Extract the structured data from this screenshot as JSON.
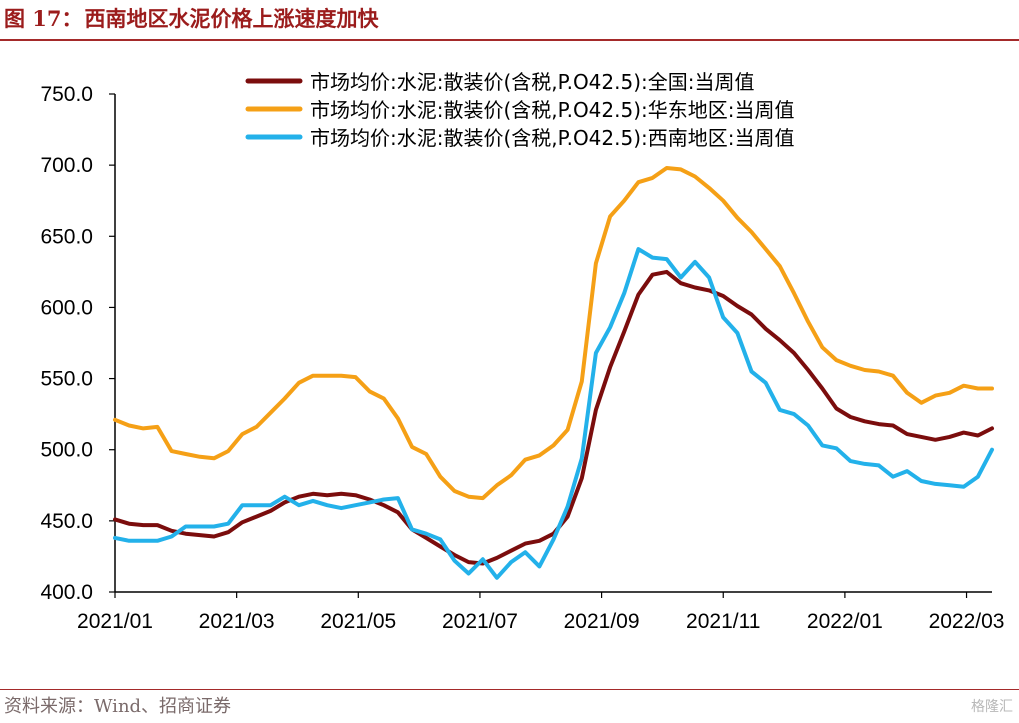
{
  "figure": {
    "label": "图 17：",
    "title": "西南地区水泥价格上涨速度加快",
    "source": "资料来源：Wind、招商证券",
    "watermark": "格隆汇"
  },
  "colors": {
    "title": "#9b1c1c",
    "rule": "#a42a2a",
    "national": "#7b0d0d",
    "east": "#f5a016",
    "southwest": "#23b1ea"
  },
  "chart_data": {
    "type": "line",
    "title": "",
    "xlabel": "",
    "ylabel": "",
    "ylim": [
      400,
      750
    ],
    "yticks": [
      "400.0",
      "450.0",
      "500.0",
      "550.0",
      "600.0",
      "650.0",
      "700.0",
      "750.0"
    ],
    "xticks": [
      "2021/01",
      "2021/03",
      "2021/05",
      "2021/07",
      "2021/09",
      "2021/11",
      "2022/01",
      "2022/03"
    ],
    "x_range_weeks": [
      0,
      62
    ],
    "grid": false,
    "legend_position": "top-right",
    "series": [
      {
        "name": "市场均价:水泥:散装价(含税,P.O42.5):全国:当周值",
        "color": "#7b0d0d",
        "points": [
          [
            0,
            451
          ],
          [
            1,
            448
          ],
          [
            2,
            447
          ],
          [
            3,
            447
          ],
          [
            4,
            443
          ],
          [
            5,
            441
          ],
          [
            6,
            440
          ],
          [
            7,
            439
          ],
          [
            8,
            442
          ],
          [
            9,
            449
          ],
          [
            10,
            453
          ],
          [
            11,
            457
          ],
          [
            12,
            463
          ],
          [
            13,
            467
          ],
          [
            14,
            469
          ],
          [
            15,
            468
          ],
          [
            16,
            469
          ],
          [
            17,
            468
          ],
          [
            18,
            465
          ],
          [
            19,
            461
          ],
          [
            20,
            456
          ],
          [
            21,
            444
          ],
          [
            22,
            438
          ],
          [
            23,
            432
          ],
          [
            24,
            426
          ],
          [
            25,
            421
          ],
          [
            26,
            420
          ],
          [
            27,
            424
          ],
          [
            28,
            429
          ],
          [
            29,
            434
          ],
          [
            30,
            436
          ],
          [
            31,
            441
          ],
          [
            32,
            453
          ],
          [
            33,
            480
          ],
          [
            34,
            528
          ],
          [
            35,
            558
          ],
          [
            36,
            583
          ],
          [
            37,
            609
          ],
          [
            38,
            623
          ],
          [
            39,
            625
          ],
          [
            40,
            617
          ],
          [
            41,
            614
          ],
          [
            42,
            612
          ],
          [
            43,
            608
          ],
          [
            44,
            601
          ],
          [
            45,
            595
          ],
          [
            46,
            585
          ],
          [
            47,
            577
          ],
          [
            48,
            568
          ],
          [
            49,
            556
          ],
          [
            50,
            543
          ],
          [
            51,
            529
          ],
          [
            52,
            523
          ],
          [
            53,
            520
          ],
          [
            54,
            518
          ],
          [
            55,
            517
          ],
          [
            56,
            511
          ],
          [
            57,
            509
          ],
          [
            58,
            507
          ],
          [
            59,
            509
          ],
          [
            60,
            512
          ],
          [
            61,
            510
          ],
          [
            62,
            515
          ]
        ]
      },
      {
        "name": "市场均价:水泥:散装价(含税,P.O42.5):华东地区:当周值",
        "color": "#f5a016",
        "points": [
          [
            0,
            521
          ],
          [
            1,
            517
          ],
          [
            2,
            515
          ],
          [
            3,
            516
          ],
          [
            4,
            499
          ],
          [
            5,
            497
          ],
          [
            6,
            495
          ],
          [
            7,
            494
          ],
          [
            8,
            499
          ],
          [
            9,
            511
          ],
          [
            10,
            516
          ],
          [
            11,
            526
          ],
          [
            12,
            536
          ],
          [
            13,
            547
          ],
          [
            14,
            552
          ],
          [
            15,
            552
          ],
          [
            16,
            552
          ],
          [
            17,
            551
          ],
          [
            18,
            541
          ],
          [
            19,
            536
          ],
          [
            20,
            522
          ],
          [
            21,
            502
          ],
          [
            22,
            497
          ],
          [
            23,
            481
          ],
          [
            24,
            471
          ],
          [
            25,
            467
          ],
          [
            26,
            466
          ],
          [
            27,
            475
          ],
          [
            28,
            482
          ],
          [
            29,
            493
          ],
          [
            30,
            496
          ],
          [
            31,
            503
          ],
          [
            32,
            514
          ],
          [
            33,
            548
          ],
          [
            34,
            631
          ],
          [
            35,
            664
          ],
          [
            36,
            675
          ],
          [
            37,
            688
          ],
          [
            38,
            691
          ],
          [
            39,
            698
          ],
          [
            40,
            697
          ],
          [
            41,
            692
          ],
          [
            42,
            684
          ],
          [
            43,
            675
          ],
          [
            44,
            663
          ],
          [
            45,
            653
          ],
          [
            46,
            641
          ],
          [
            47,
            629
          ],
          [
            48,
            610
          ],
          [
            49,
            590
          ],
          [
            50,
            572
          ],
          [
            51,
            563
          ],
          [
            52,
            559
          ],
          [
            53,
            556
          ],
          [
            54,
            555
          ],
          [
            55,
            552
          ],
          [
            56,
            540
          ],
          [
            57,
            533
          ],
          [
            58,
            538
          ],
          [
            59,
            540
          ],
          [
            60,
            545
          ],
          [
            61,
            543
          ],
          [
            62,
            543
          ]
        ]
      },
      {
        "name": "市场均价:水泥:散装价(含税,P.O42.5):西南地区:当周值",
        "color": "#23b1ea",
        "points": [
          [
            0,
            438
          ],
          [
            1,
            436
          ],
          [
            2,
            436
          ],
          [
            3,
            436
          ],
          [
            4,
            439
          ],
          [
            5,
            446
          ],
          [
            6,
            446
          ],
          [
            7,
            446
          ],
          [
            8,
            448
          ],
          [
            9,
            461
          ],
          [
            10,
            461
          ],
          [
            11,
            461
          ],
          [
            12,
            467
          ],
          [
            13,
            461
          ],
          [
            14,
            464
          ],
          [
            15,
            461
          ],
          [
            16,
            459
          ],
          [
            17,
            461
          ],
          [
            18,
            463
          ],
          [
            19,
            465
          ],
          [
            20,
            466
          ],
          [
            21,
            444
          ],
          [
            22,
            441
          ],
          [
            23,
            437
          ],
          [
            24,
            422
          ],
          [
            25,
            413
          ],
          [
            26,
            423
          ],
          [
            27,
            410
          ],
          [
            28,
            421
          ],
          [
            29,
            428
          ],
          [
            30,
            418
          ],
          [
            31,
            437
          ],
          [
            32,
            460
          ],
          [
            33,
            494
          ],
          [
            34,
            568
          ],
          [
            35,
            586
          ],
          [
            36,
            610
          ],
          [
            37,
            641
          ],
          [
            38,
            635
          ],
          [
            39,
            634
          ],
          [
            40,
            621
          ],
          [
            41,
            632
          ],
          [
            42,
            621
          ],
          [
            43,
            593
          ],
          [
            44,
            582
          ],
          [
            45,
            555
          ],
          [
            46,
            547
          ],
          [
            47,
            528
          ],
          [
            48,
            525
          ],
          [
            49,
            517
          ],
          [
            50,
            503
          ],
          [
            51,
            501
          ],
          [
            52,
            492
          ],
          [
            53,
            490
          ],
          [
            54,
            489
          ],
          [
            55,
            481
          ],
          [
            56,
            485
          ],
          [
            57,
            478
          ],
          [
            58,
            476
          ],
          [
            59,
            475
          ],
          [
            60,
            474
          ],
          [
            61,
            481
          ],
          [
            62,
            500
          ]
        ]
      }
    ]
  }
}
